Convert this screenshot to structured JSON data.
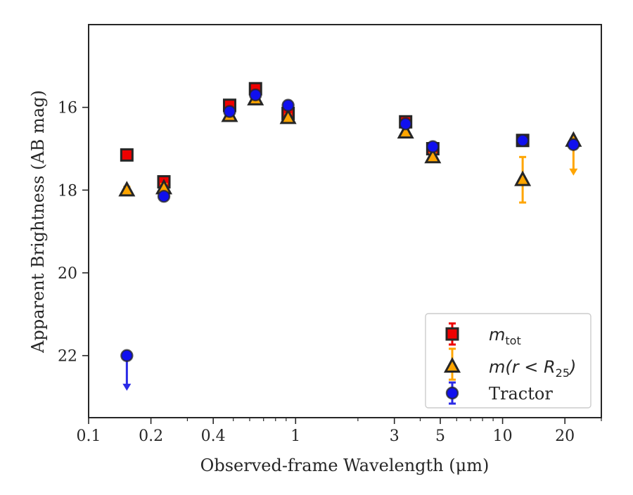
{
  "chart_data": {
    "type": "scatter",
    "title": "",
    "xlabel": "Observed-frame Wavelength (μm)",
    "ylabel": "Apparent Brightness (AB mag)",
    "x_scale": "log",
    "xlim": [
      0.1,
      30
    ],
    "ylim": [
      23.5,
      14.0
    ],
    "y_inverted": true,
    "grid": false,
    "legend_position": "bottom-right",
    "x_ticks": [
      {
        "value": 0.1,
        "label": "0.1"
      },
      {
        "value": 0.2,
        "label": "0.2"
      },
      {
        "value": 0.4,
        "label": "0.4"
      },
      {
        "value": 1,
        "label": "1"
      },
      {
        "value": 3,
        "label": "3"
      },
      {
        "value": 5,
        "label": "5"
      },
      {
        "value": 10,
        "label": "10"
      },
      {
        "value": 20,
        "label": "20"
      }
    ],
    "x_minor_ticks": [
      0.3,
      0.5,
      0.6,
      0.7,
      0.8,
      0.9,
      2,
      4,
      6,
      7,
      8,
      9,
      30
    ],
    "y_ticks": [
      {
        "value": 16,
        "label": "16"
      },
      {
        "value": 18,
        "label": "18"
      },
      {
        "value": 20,
        "label": "20"
      },
      {
        "value": 22,
        "label": "22"
      }
    ],
    "series": [
      {
        "name": "m_tot",
        "label_main": "m",
        "label_sub": "tot",
        "marker": "square",
        "color": "#ee0000",
        "error_color": "#ee0000",
        "points": [
          {
            "x": 0.153,
            "y": 17.15,
            "err": 0.1
          },
          {
            "x": 0.231,
            "y": 17.8,
            "err": 0.12
          },
          {
            "x": 0.48,
            "y": 15.95,
            "err": 0.08
          },
          {
            "x": 0.64,
            "y": 15.55,
            "err": 0.08
          },
          {
            "x": 0.92,
            "y": 16.15,
            "err": 0.1
          },
          {
            "x": 3.4,
            "y": 16.35,
            "err": 0.08
          },
          {
            "x": 4.6,
            "y": 17.0,
            "err": 0.1
          },
          {
            "x": 12.5,
            "y": 16.8,
            "err": 0.1
          }
        ]
      },
      {
        "name": "m(r < R_25)",
        "label_main": "m(r < R",
        "label_sub": "25",
        "label_tail": ")",
        "marker": "triangle",
        "color": "#ffa500",
        "error_color": "#ffa500",
        "points": [
          {
            "x": 0.153,
            "y": 18.0,
            "err": 0.08
          },
          {
            "x": 0.231,
            "y": 17.95,
            "err": 0.1
          },
          {
            "x": 0.48,
            "y": 16.2,
            "err": 0.08
          },
          {
            "x": 0.64,
            "y": 15.8,
            "err": 0.08
          },
          {
            "x": 0.92,
            "y": 16.25,
            "err": 0.08
          },
          {
            "x": 3.4,
            "y": 16.6,
            "err": 0.08
          },
          {
            "x": 4.6,
            "y": 17.2,
            "err": 0.1
          },
          {
            "x": 12.5,
            "y": 17.75,
            "err": 0.55
          },
          {
            "x": 22.0,
            "y": 16.8,
            "err": 0,
            "upper_limit": true
          }
        ]
      },
      {
        "name": "Tractor",
        "label_main": "Tractor",
        "marker": "circle",
        "color": "#1010ee",
        "error_color": "#2a2ae6",
        "points": [
          {
            "x": 0.153,
            "y": 22.0,
            "err": 0,
            "upper_limit": true
          },
          {
            "x": 0.231,
            "y": 18.15,
            "err": 0.08
          },
          {
            "x": 0.48,
            "y": 16.1,
            "err": 0.08
          },
          {
            "x": 0.64,
            "y": 15.7,
            "err": 0.08
          },
          {
            "x": 0.92,
            "y": 15.95,
            "err": 0.08
          },
          {
            "x": 3.4,
            "y": 16.4,
            "err": 0.08
          },
          {
            "x": 4.6,
            "y": 16.95,
            "err": 0.08
          },
          {
            "x": 12.5,
            "y": 16.8,
            "err": 0.08
          },
          {
            "x": 22.0,
            "y": 16.9,
            "err": 0.08
          }
        ]
      }
    ]
  }
}
